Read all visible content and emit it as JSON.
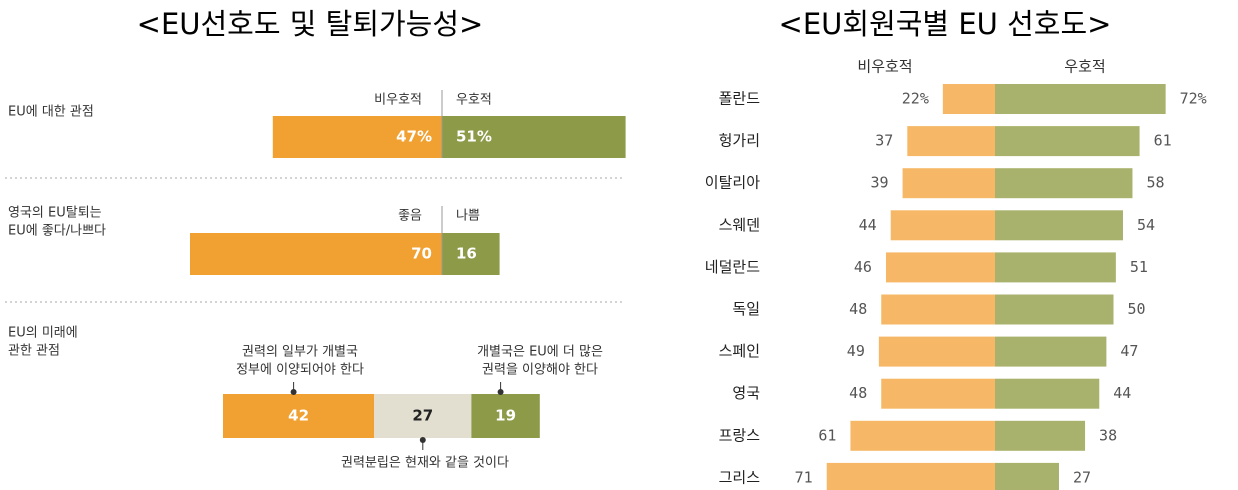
{
  "chart_data": [
    {
      "type": "diverging-panel",
      "title": "<EU선호도 및 탈퇴가능성>",
      "rows": [
        {
          "label_lines": [
            "EU에 대한 관점"
          ],
          "segments": [
            {
              "name": "비우호적",
              "value": 47,
              "value_label": "47%",
              "color": "#f0a131"
            },
            {
              "name": "우호적",
              "value": 51,
              "value_label": "51%",
              "color": "#8d9b49"
            }
          ]
        },
        {
          "label_lines": [
            "영국의 EU탈퇴는",
            "EU에 좋다/나쁘다"
          ],
          "segments": [
            {
              "name": "좋음",
              "value": 70,
              "color": "#f0a131"
            },
            {
              "name": "나쁨",
              "value": 16,
              "color": "#8d9b49"
            }
          ]
        },
        {
          "label_lines": [
            "EU의 미래에",
            "관한 관점"
          ],
          "segments": [
            {
              "annotation_lines": [
                "권력의 일부가 개별국",
                "정부에 이양되어야 한다"
              ],
              "value": 42,
              "color": "#f0a131"
            },
            {
              "annotation_lines": [
                "권력분립은 현재와 같을 것이다"
              ],
              "value": 27,
              "color": "#e2dfd0"
            },
            {
              "annotation_lines": [
                "개별국은 EU에 더 많은",
                "권력을 이양해야 한다"
              ],
              "value": 19,
              "color": "#8d9b49"
            }
          ]
        }
      ]
    },
    {
      "type": "diverging-bar",
      "title": "<EU회원국별 EU 선호도>",
      "categories": [
        "폴란드",
        "헝가리",
        "이탈리아",
        "스웨덴",
        "네덜란드",
        "독일",
        "스페인",
        "영국",
        "프랑스",
        "그리스"
      ],
      "series": [
        {
          "name": "비우호적",
          "color": "#f6b867",
          "values": [
            22,
            37,
            39,
            44,
            46,
            48,
            49,
            48,
            61,
            71
          ],
          "value_labels": [
            "22%",
            "37",
            "39",
            "44",
            "46",
            "48",
            "49",
            "48",
            "61",
            "71"
          ]
        },
        {
          "name": "우호적",
          "color": "#a9b26c",
          "values": [
            72,
            61,
            58,
            54,
            51,
            50,
            47,
            44,
            38,
            27
          ],
          "value_labels": [
            "72%",
            "61",
            "58",
            "54",
            "51",
            "50",
            "47",
            "44",
            "38",
            "27"
          ]
        }
      ]
    }
  ]
}
